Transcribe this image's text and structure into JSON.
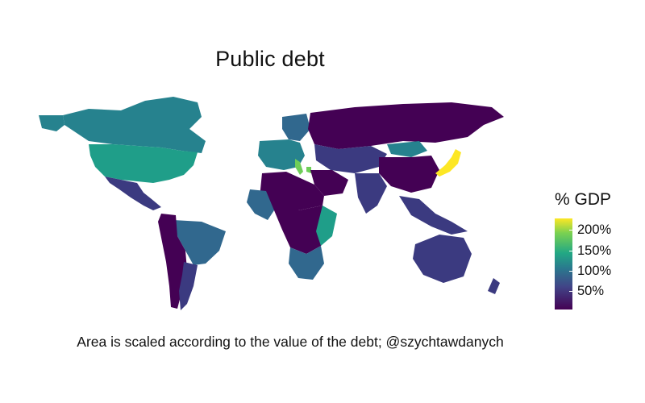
{
  "title": "Public debt",
  "caption": "Area is scaled according to the value of the debt; @szychtawdanych",
  "legend": {
    "title": "% GDP",
    "ticks": [
      "200%",
      "150%",
      "100%",
      "50%"
    ],
    "colors": [
      "#fde725",
      "#7ad151",
      "#22a884",
      "#2a788e",
      "#414487",
      "#440154"
    ]
  },
  "colors": {
    "very_low": "#440154",
    "low": "#3b3a80",
    "mid_low": "#31688e",
    "mid": "#26828e",
    "mid_high": "#1f9e89",
    "high": "#6ece58",
    "very_high": "#fde725"
  }
}
